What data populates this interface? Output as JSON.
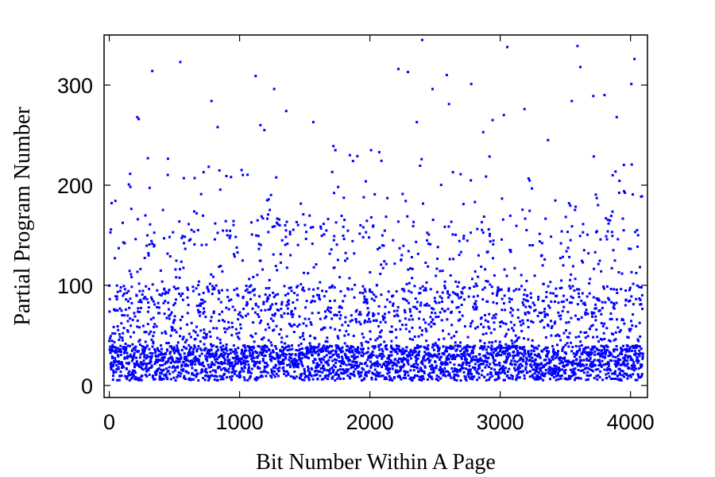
{
  "chart_data": {
    "type": "scatter",
    "title": "",
    "xlabel": "Bit Number Within A Page",
    "ylabel": "Partial Program Number",
    "xlim": [
      -40,
      4130
    ],
    "ylim": [
      -12,
      350
    ],
    "xticks": [
      0,
      1000,
      2000,
      3000,
      4000
    ],
    "xtick_labels": [
      "0",
      "1000",
      "2000",
      "3000",
      "4000"
    ],
    "yticks": [
      0,
      100,
      200,
      300
    ],
    "ytick_labels": [
      "0",
      "100",
      "200",
      "300"
    ],
    "grid": false,
    "legend": "none",
    "marker_color": "#0000ff",
    "series": [
      {
        "points_note_count": 4096,
        "x_range": [
          0,
          4095
        ],
        "outliers": [
          [
            215,
            268
          ],
          [
            226,
            266
          ],
          [
            330,
            314
          ],
          [
            545,
            323
          ],
          [
            572,
            207
          ],
          [
            784,
            284
          ],
          [
            832,
            258
          ],
          [
            1123,
            309
          ],
          [
            1160,
            260
          ],
          [
            1190,
            255
          ],
          [
            1265,
            296
          ],
          [
            1358,
            274
          ],
          [
            1566,
            263
          ],
          [
            1720,
            239
          ],
          [
            1735,
            235
          ],
          [
            1846,
            230
          ],
          [
            1904,
            229
          ],
          [
            2009,
            235
          ],
          [
            2072,
            233
          ],
          [
            2219,
            316
          ],
          [
            2292,
            313
          ],
          [
            2360,
            263
          ],
          [
            2401,
            345
          ],
          [
            2481,
            296
          ],
          [
            2590,
            310
          ],
          [
            2607,
            281
          ],
          [
            2778,
            301
          ],
          [
            2870,
            253
          ],
          [
            2942,
            265
          ],
          [
            3028,
            270
          ],
          [
            3054,
            338
          ],
          [
            3186,
            276
          ],
          [
            3367,
            245
          ],
          [
            3549,
            284
          ],
          [
            3593,
            339
          ],
          [
            3615,
            318
          ],
          [
            3715,
            289
          ],
          [
            3800,
            290
          ],
          [
            3894,
            268
          ],
          [
            4006,
            301
          ],
          [
            4030,
            326
          ]
        ]
      }
    ]
  }
}
